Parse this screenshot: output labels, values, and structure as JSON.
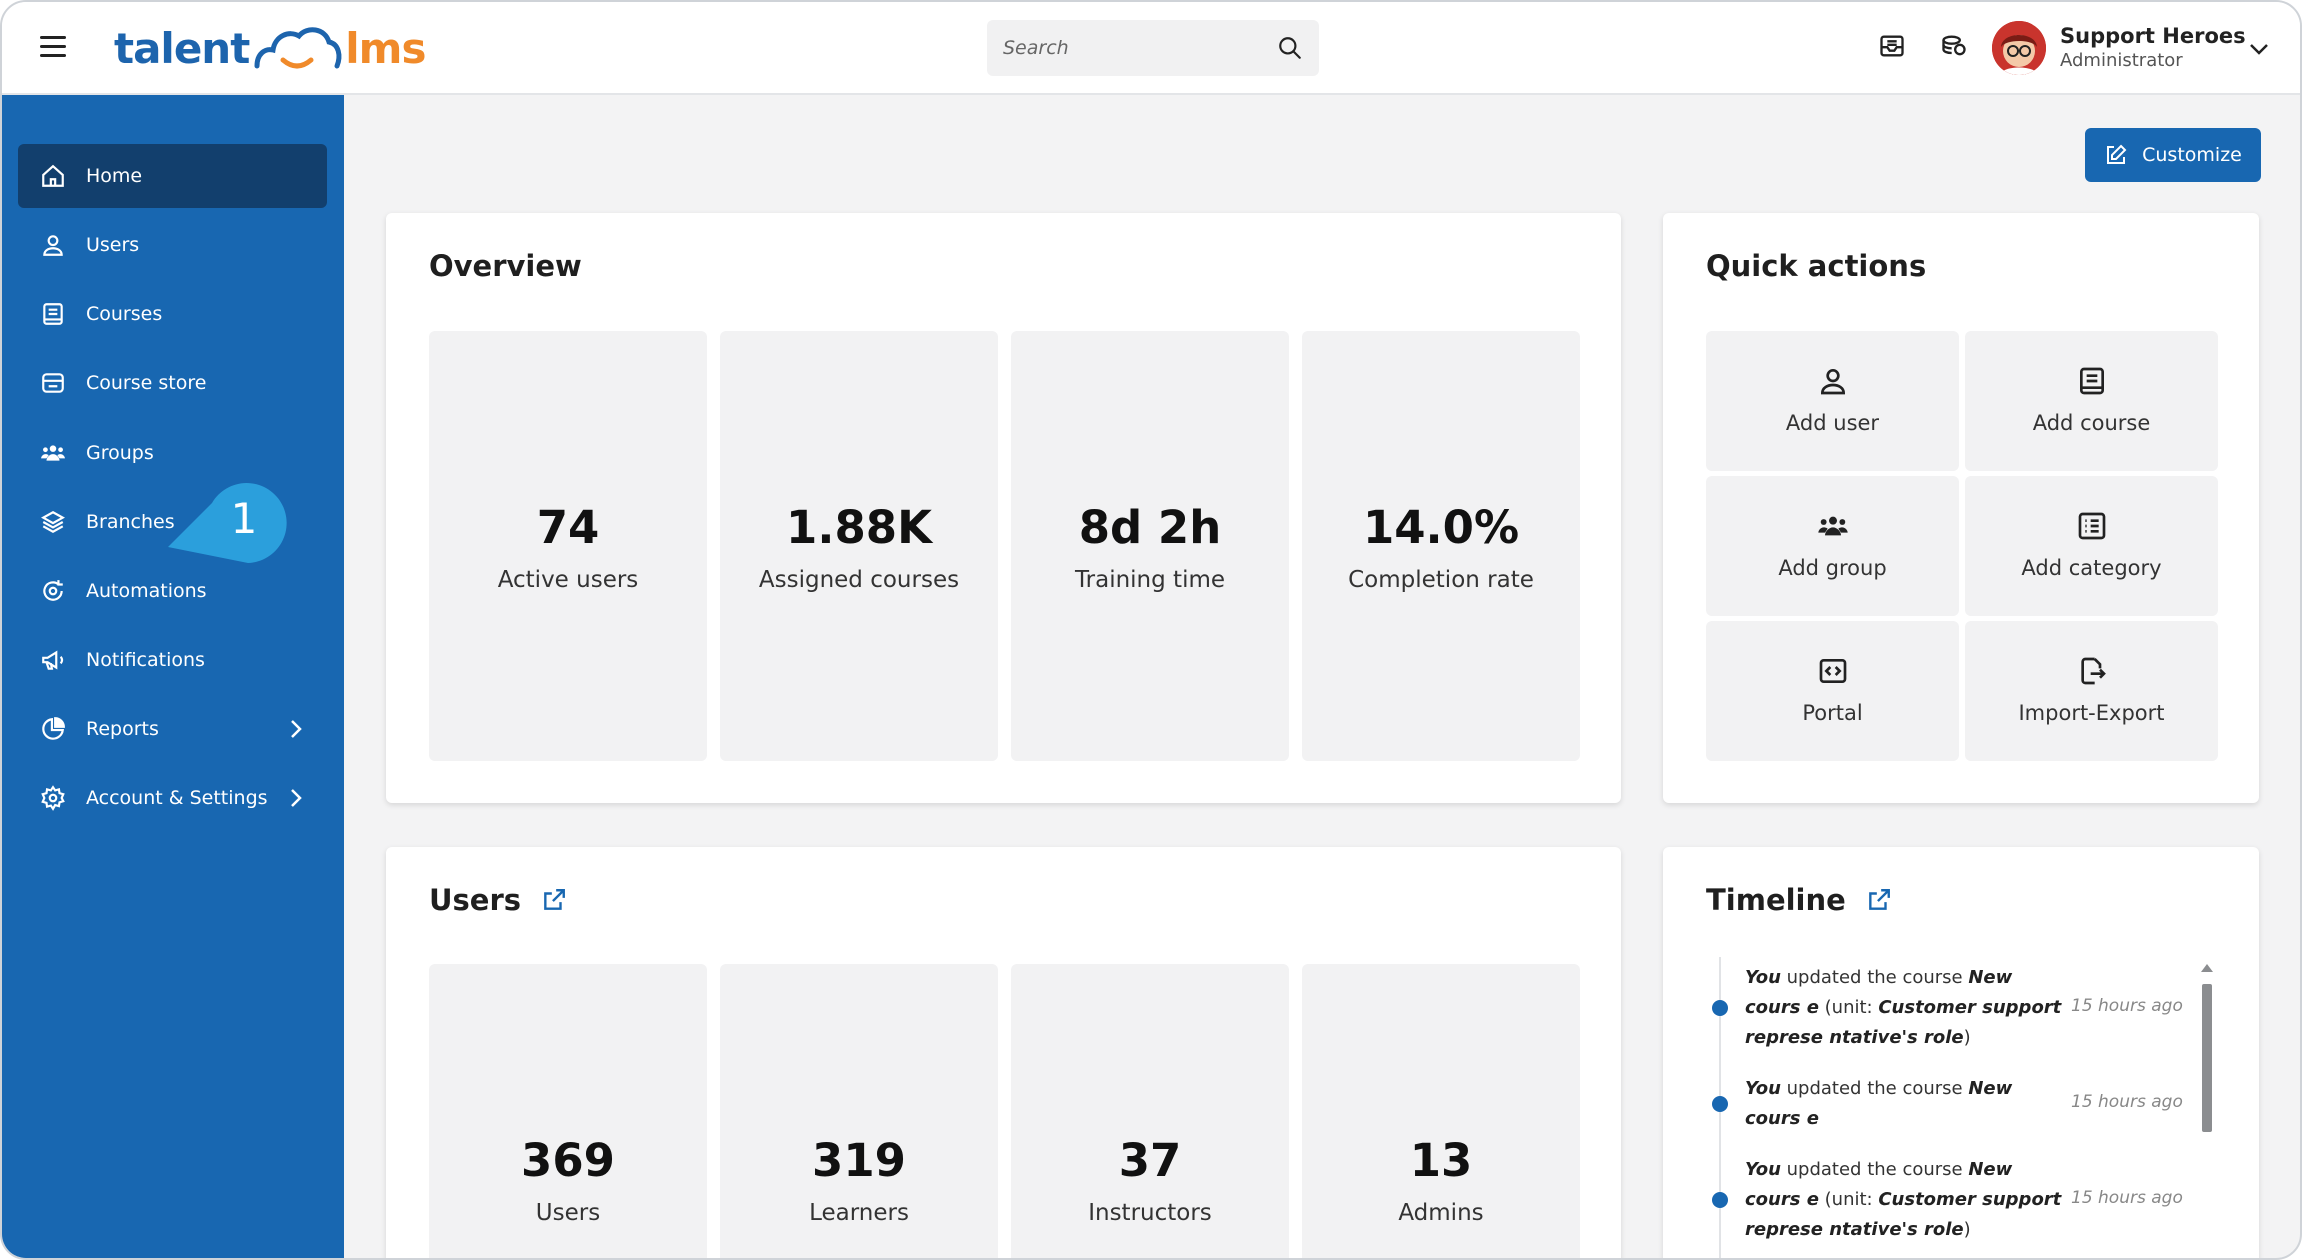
{
  "brand": {
    "logo_left": "talent",
    "logo_right": "lms",
    "primary_color": "#1867b1",
    "accent_color": "#f08a2a"
  },
  "search": {
    "placeholder": "Search"
  },
  "topbar": {
    "icons": [
      "inbox-icon",
      "coins-icon"
    ]
  },
  "profile": {
    "name": "Support Heroes",
    "role": "Administrator"
  },
  "sidebar": {
    "items": [
      {
        "label": "Home",
        "icon": "home-icon",
        "active": true
      },
      {
        "label": "Users",
        "icon": "user-icon"
      },
      {
        "label": "Courses",
        "icon": "book-icon"
      },
      {
        "label": "Course store",
        "icon": "store-icon"
      },
      {
        "label": "Groups",
        "icon": "group-icon"
      },
      {
        "label": "Branches",
        "icon": "layers-icon"
      },
      {
        "label": "Automations",
        "icon": "automation-icon"
      },
      {
        "label": "Notifications",
        "icon": "megaphone-icon"
      },
      {
        "label": "Reports",
        "icon": "pie-chart-icon",
        "expandable": true
      },
      {
        "label": "Account & Settings",
        "icon": "gear-icon",
        "expandable": true
      }
    ],
    "callout_number": "1"
  },
  "customize": {
    "label": "Customize"
  },
  "overview": {
    "title": "Overview",
    "stats": [
      {
        "value": "74",
        "label": "Active users"
      },
      {
        "value": "1.88K",
        "label": "Assigned courses"
      },
      {
        "value": "8d 2h",
        "label": "Training time"
      },
      {
        "value": "14.0%",
        "label": "Completion rate"
      }
    ]
  },
  "quick_actions": {
    "title": "Quick actions",
    "items": [
      {
        "label": "Add user",
        "icon": "user-icon"
      },
      {
        "label": "Add course",
        "icon": "book-icon"
      },
      {
        "label": "Add group",
        "icon": "group-icon"
      },
      {
        "label": "Add category",
        "icon": "list-icon"
      },
      {
        "label": "Portal",
        "icon": "code-icon"
      },
      {
        "label": "Import-Export",
        "icon": "import-export-icon"
      }
    ]
  },
  "users": {
    "title": "Users",
    "stats": [
      {
        "value": "369",
        "label": "Users"
      },
      {
        "value": "319",
        "label": "Learners"
      },
      {
        "value": "37",
        "label": "Instructors"
      },
      {
        "value": "13",
        "label": "Admins"
      }
    ]
  },
  "timeline": {
    "title": "Timeline",
    "entries": [
      {
        "actor": "You",
        "action": " updated the course ",
        "course": "New cours e",
        "unit_prefix": " (unit: ",
        "unit": "Customer support represe ntative's role",
        "unit_suffix": ")",
        "time": "15 hours ago"
      },
      {
        "actor": "You",
        "action": " updated the course ",
        "course": "New cours e",
        "unit_prefix": "",
        "unit": "",
        "unit_suffix": "",
        "time": "15 hours ago"
      },
      {
        "actor": "You",
        "action": " updated the course ",
        "course": "New cours e",
        "unit_prefix": " (unit: ",
        "unit": "Customer support represe ntative's role",
        "unit_suffix": ")",
        "time": "15 hours ago"
      }
    ]
  }
}
